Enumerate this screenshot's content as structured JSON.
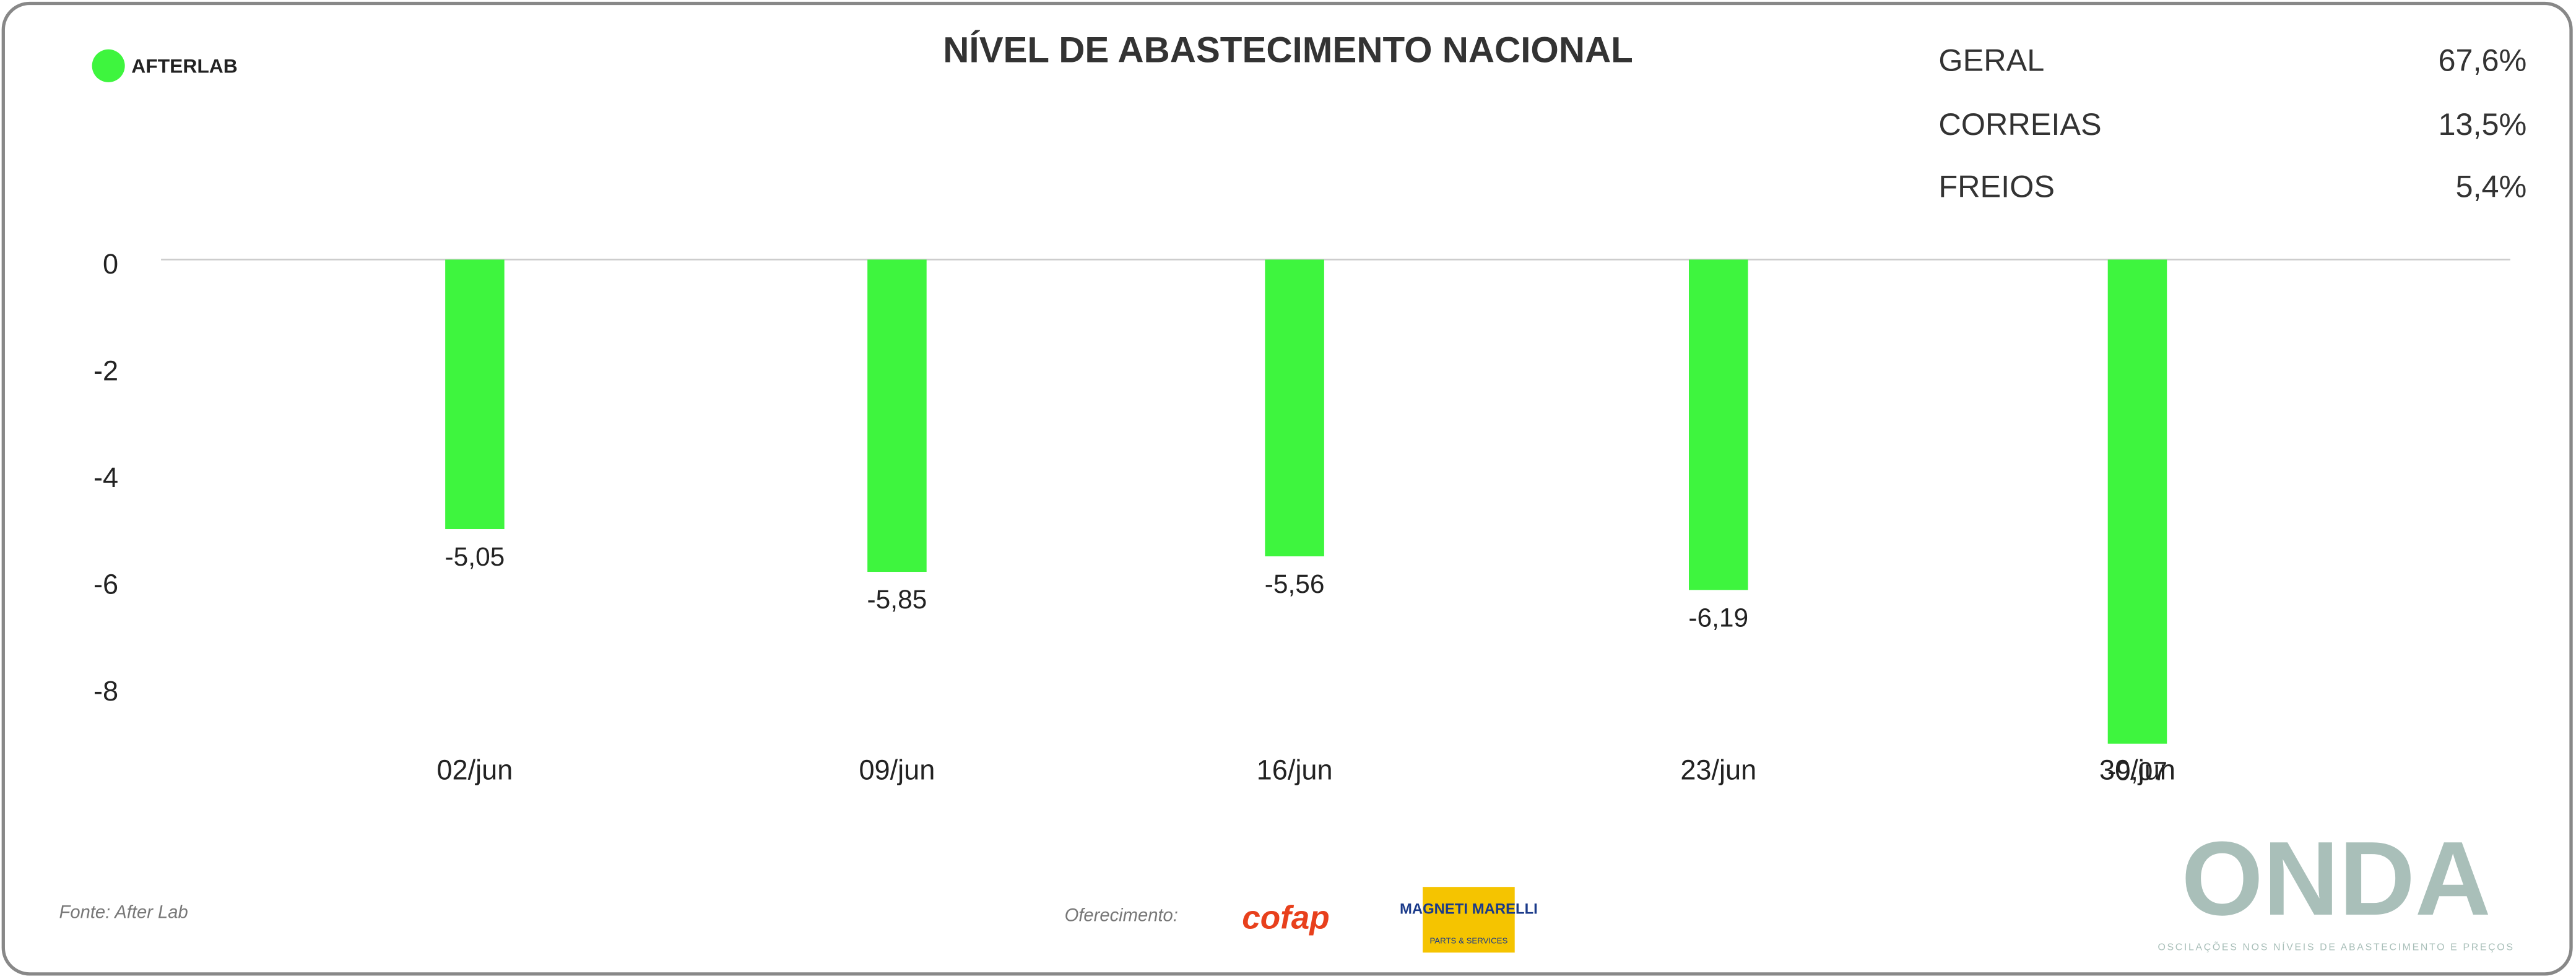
{
  "brand": "AFTERLAB",
  "summary": [
    {
      "label": "GERAL",
      "value": "67,6%"
    },
    {
      "label": "CORREIAS",
      "value": "13,5%"
    },
    {
      "label": "FREIOS",
      "value": "5,4%"
    }
  ],
  "footer": {
    "source": "Fonte: After Lab",
    "sponsor_label": "Oferecimento:",
    "sponsor1": "cofap",
    "sponsor2": "MAGNETI MARELLI",
    "sponsor2_sub": "PARTS & SERVICES",
    "logo": "ONDA",
    "logo_sub": "OSCILAÇÕES NOS NÍVEIS DE ABASTECIMENTO E PREÇOS"
  },
  "chart_data": {
    "type": "bar",
    "title": "NÍVEL DE ABASTECIMENTO NACIONAL",
    "categories": [
      "02/jun",
      "09/jun",
      "16/jun",
      "23/jun",
      "30/jun"
    ],
    "values": [
      -5.05,
      -5.85,
      -5.56,
      -6.19,
      -9.07
    ],
    "value_labels": [
      "-5,05",
      "-5,85",
      "-5,56",
      "-6,19",
      "-9,07"
    ],
    "color": "#3ef53e",
    "ylim": [
      -10,
      0
    ],
    "yticks": [
      0,
      -2,
      -4,
      -6,
      -8
    ]
  }
}
